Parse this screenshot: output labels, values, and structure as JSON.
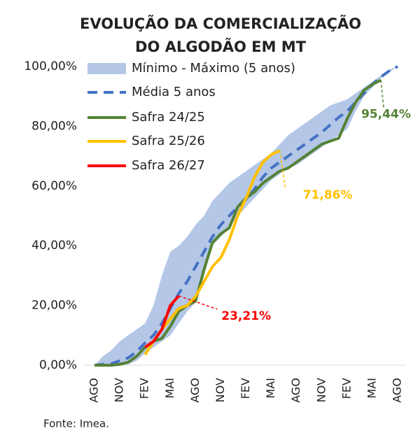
{
  "chart_data": {
    "type": "line",
    "title": [
      "EVOLUÇÃO DA COMERCIALIZAÇÃO",
      "DO ALGODÃO EM MT"
    ],
    "source": "Fonte: Imea.",
    "categories": [
      "AGO",
      null,
      null,
      "NOV",
      null,
      null,
      "FEV",
      null,
      null,
      "MAI",
      null,
      null,
      "AGO",
      null,
      null,
      "NOV",
      null,
      null,
      "FEV",
      null,
      null,
      "MAI",
      null,
      null,
      "AGO",
      null,
      null,
      "NOV",
      null,
      null,
      "FEV",
      null,
      null,
      "MAI",
      null,
      null,
      "AGO"
    ],
    "ylim": [
      0,
      100
    ],
    "yticks": [
      {
        "value": 0,
        "label": "0,00%"
      },
      {
        "value": 20,
        "label": "20,00%"
      },
      {
        "value": 40,
        "label": "40,00%"
      },
      {
        "value": 60,
        "label": "60,00%"
      },
      {
        "value": 80,
        "label": "80,00%"
      },
      {
        "value": 100,
        "label": "100,00%"
      }
    ],
    "grid": false,
    "legend": "top-left",
    "band": {
      "name": "Mínimo - Máximo (5 anos)",
      "color": "#b4c7e7",
      "max": [
        0,
        3,
        5,
        8,
        10,
        12,
        14,
        20,
        30,
        38,
        40,
        43,
        47,
        50,
        55,
        58,
        61,
        63,
        65,
        67,
        69,
        71,
        74,
        77,
        79,
        81,
        83,
        85,
        87,
        88,
        89,
        91,
        93,
        95,
        97,
        99,
        100
      ],
      "min": [
        0,
        0,
        0,
        0,
        0.3,
        1.5,
        4,
        6,
        8,
        10,
        14,
        18,
        21,
        30,
        40,
        43,
        46,
        50,
        53,
        56,
        59,
        62,
        64,
        66,
        67,
        69,
        71,
        73,
        75,
        77,
        79,
        85,
        90,
        93,
        96,
        98,
        100
      ]
    },
    "series": [
      {
        "name": "Média 5 anos",
        "color": "#4472c4",
        "line_style": "dashed",
        "values": [
          0,
          0.3,
          0.5,
          1.5,
          2.5,
          4.5,
          7.5,
          10,
          14,
          19,
          24,
          28,
          33,
          38,
          43,
          47,
          50,
          53,
          55.5,
          59,
          63,
          66,
          68,
          70,
          72,
          74,
          76,
          78,
          80.5,
          83,
          85,
          88,
          91,
          94,
          96.5,
          98.5,
          100
        ]
      },
      {
        "name": "Safra 24/25",
        "color": "#548235",
        "line_style": "solid",
        "values": [
          0,
          0,
          0,
          0.3,
          1,
          3,
          6,
          8,
          9,
          13,
          18,
          20,
          21.5,
          32,
          41,
          44,
          46,
          53,
          56,
          58,
          61,
          63,
          65,
          66,
          68,
          70,
          72,
          74,
          75,
          76,
          82.5,
          88,
          92,
          94,
          95.44,
          null,
          null
        ],
        "value_labels": [
          null,
          null,
          null,
          null,
          null,
          null,
          null,
          null,
          null,
          null,
          null,
          null,
          null,
          null,
          null,
          null,
          null,
          null,
          null,
          null,
          null,
          null,
          null,
          null,
          null,
          null,
          null,
          null,
          null,
          null,
          null,
          null,
          null,
          null,
          "95,44%",
          null,
          null
        ]
      },
      {
        "name": "Safra 25/26",
        "color": "#ffc000",
        "line_style": "solid",
        "values": [
          null,
          null,
          null,
          null,
          null,
          null,
          3.5,
          8,
          12,
          15.5,
          19,
          20,
          23,
          28,
          33,
          36,
          42,
          50,
          56,
          63,
          68,
          70.5,
          71.86,
          null,
          null,
          null,
          null,
          null,
          null,
          null,
          null,
          null,
          null,
          null,
          null,
          null,
          null
        ],
        "value_labels": [
          null,
          null,
          null,
          null,
          null,
          null,
          null,
          null,
          null,
          null,
          null,
          null,
          null,
          null,
          null,
          null,
          null,
          null,
          null,
          null,
          null,
          null,
          "71,86%",
          null,
          null,
          null,
          null,
          null,
          null,
          null,
          null,
          null,
          null,
          null,
          null,
          null,
          null
        ]
      },
      {
        "name": "Safra 26/27",
        "color": "#ff0000",
        "line_style": "solid",
        "values": [
          null,
          null,
          null,
          null,
          null,
          null,
          6,
          8,
          12,
          20,
          23.21,
          null,
          null,
          null,
          null,
          null,
          null,
          null,
          null,
          null,
          null,
          null,
          null,
          null,
          null,
          null,
          null,
          null,
          null,
          null,
          null,
          null,
          null,
          null,
          null,
          null,
          null
        ],
        "value_labels": [
          null,
          null,
          null,
          null,
          null,
          null,
          null,
          null,
          null,
          null,
          "23,21%",
          null,
          null,
          null,
          null,
          null,
          null,
          null,
          null,
          null,
          null,
          null,
          null,
          null,
          null,
          null,
          null,
          null,
          null,
          null,
          null,
          null,
          null,
          null,
          null,
          null,
          null
        ]
      }
    ]
  }
}
